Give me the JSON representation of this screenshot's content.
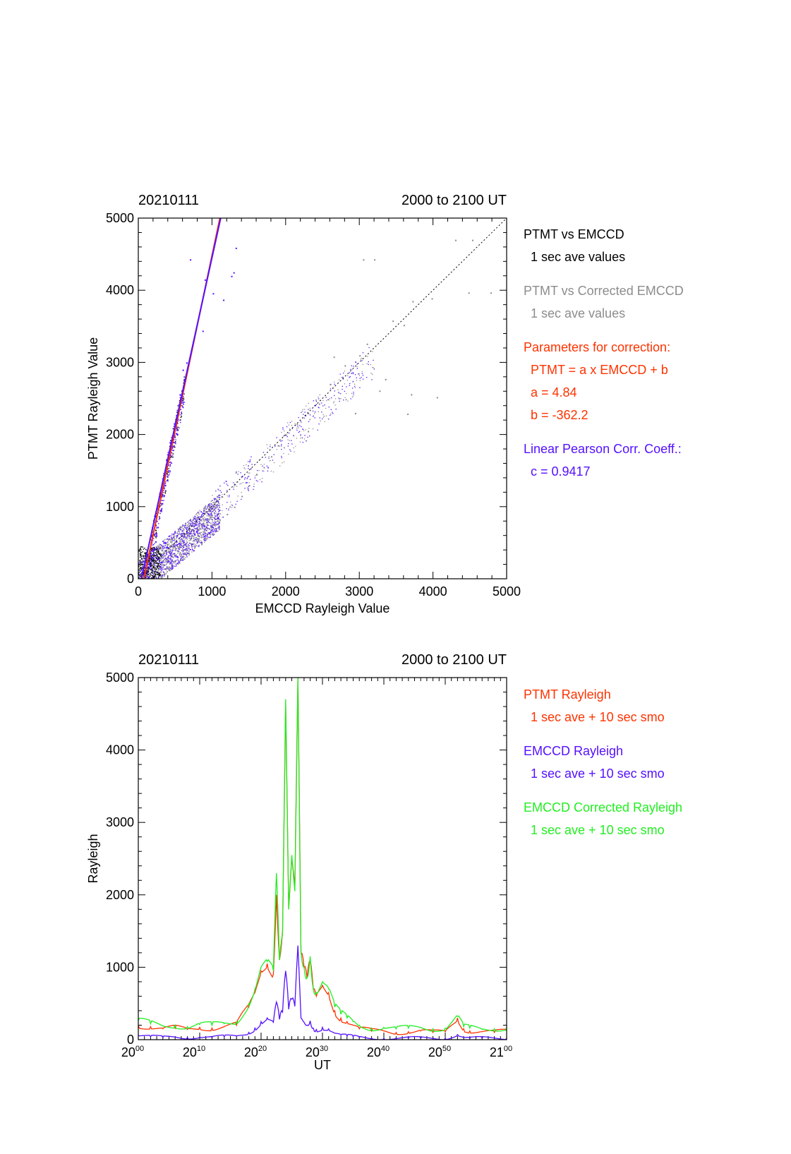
{
  "colors": {
    "black": "#000000",
    "gray": "#8c8c8c",
    "red": "#ff3300",
    "blue": "#5511ff",
    "green": "#22ee22"
  },
  "chart_data": [
    {
      "type": "scatter",
      "title_left": "20210111",
      "title_right": "2000 to 2100 UT",
      "xlabel": "EMCCD Rayleigh Value",
      "ylabel": "PTMT Rayleigh Value",
      "xlim": [
        0,
        5000
      ],
      "ylim": [
        0,
        5000
      ],
      "xticks": [
        "0",
        "1000",
        "2000",
        "3000",
        "4000",
        "5000"
      ],
      "yticks": [
        "0",
        "1000",
        "2000",
        "3000",
        "4000",
        "5000"
      ],
      "legend": [
        {
          "text": "PTMT vs EMCCD",
          "color": "black"
        },
        {
          "text": "1 sec ave values",
          "color": "black"
        },
        {
          "text": "PTMT vs Corrected EMCCD",
          "color": "gray"
        },
        {
          "text": "1 sec ave values",
          "color": "gray"
        },
        {
          "text": "Parameters for correction:",
          "color": "red"
        },
        {
          "text": "PTMT = a x EMCCD + b",
          "color": "red"
        },
        {
          "text": "a = 4.84",
          "color": "red"
        },
        {
          "text": "b = -362.2",
          "color": "red"
        },
        {
          "text": "Linear Pearson Corr. Coeff.:",
          "color": "blue"
        },
        {
          "text": "c = 0.9417",
          "color": "blue"
        }
      ],
      "fit_lines": [
        {
          "name": "correction",
          "color": "red",
          "slope": 4.84,
          "intercept": -362.2
        },
        {
          "name": "regression",
          "color": "blue",
          "slope": 4.65,
          "intercept": -200
        }
      ],
      "reference_line": {
        "style": "dotted",
        "color": "black",
        "points": [
          [
            0,
            0
          ],
          [
            5000,
            5000
          ]
        ]
      },
      "series": [
        {
          "name": "PTMT vs EMCCD",
          "color": "blue",
          "points": [
            [
              700,
              4430
            ],
            [
              900,
              4150
            ],
            [
              870,
              3440
            ],
            [
              1010,
              3960
            ],
            [
              1150,
              3870
            ],
            [
              1260,
              4200
            ],
            [
              1290,
              4250
            ],
            [
              1320,
              4590
            ],
            [
              650,
              3000
            ],
            [
              620,
              2750
            ],
            [
              560,
              2560
            ],
            [
              540,
              2300
            ],
            [
              520,
              2250
            ],
            [
              500,
              2150
            ],
            [
              470,
              1900
            ],
            [
              430,
              1720
            ],
            [
              420,
              1500
            ],
            [
              390,
              1420
            ],
            [
              360,
              1300
            ],
            [
              340,
              1150
            ],
            [
              320,
              1050
            ],
            [
              300,
              950
            ],
            [
              280,
              850
            ],
            [
              260,
              720
            ],
            [
              240,
              600
            ],
            [
              230,
              520
            ],
            [
              210,
              420
            ],
            [
              200,
              350
            ],
            [
              190,
              300
            ],
            [
              170,
              250
            ],
            [
              150,
              200
            ],
            [
              130,
              150
            ],
            [
              110,
              120
            ],
            [
              90,
              80
            ],
            [
              600,
              2900
            ],
            [
              580,
              2450
            ]
          ]
        },
        {
          "name": "PTMT vs Corrected EMCCD",
          "color": "gray",
          "points": [
            [
              3050,
              4430
            ],
            [
              3200,
              4430
            ],
            [
              4300,
              4700
            ],
            [
              4530,
              4700
            ],
            [
              4480,
              3970
            ],
            [
              4780,
              3970
            ],
            [
              3980,
              3890
            ],
            [
              3720,
              3850
            ],
            [
              3450,
              3580
            ],
            [
              3100,
              3260
            ],
            [
              3000,
              3100
            ],
            [
              2800,
              2960
            ],
            [
              2600,
              2700
            ],
            [
              2450,
              2430
            ],
            [
              2300,
              2300
            ],
            [
              2150,
              2150
            ],
            [
              2000,
              2000
            ],
            [
              1900,
              1850
            ],
            [
              1800,
              1700
            ],
            [
              1700,
              1550
            ],
            [
              1600,
              1450
            ],
            [
              1500,
              1300
            ],
            [
              1400,
              1150
            ],
            [
              1300,
              1000
            ],
            [
              1200,
              900
            ],
            [
              1100,
              820
            ],
            [
              1000,
              750
            ],
            [
              900,
              700
            ],
            [
              800,
              620
            ],
            [
              700,
              550
            ],
            [
              600,
              500
            ],
            [
              500,
              430
            ],
            [
              400,
              380
            ],
            [
              300,
              300
            ],
            [
              200,
              200
            ],
            [
              100,
              120
            ],
            [
              3350,
              2770
            ],
            [
              3700,
              2560
            ],
            [
              4050,
              2520
            ],
            [
              3650,
              2290
            ],
            [
              2650,
              3080
            ],
            [
              3270,
              2610
            ],
            [
              3600,
              3520
            ],
            [
              2940,
              2300
            ],
            [
              2300,
              2050
            ]
          ]
        }
      ]
    },
    {
      "type": "line",
      "title_left": "20210111",
      "title_right": "2000 to 2100 UT",
      "xlabel": "UT",
      "ylabel": "Rayleigh",
      "ylim": [
        0,
        5000
      ],
      "xlim_minutes": [
        0,
        60
      ],
      "yticks": [
        "0",
        "1000",
        "2000",
        "3000",
        "4000",
        "5000"
      ],
      "xticks": [
        {
          "base": "20",
          "sup": "00"
        },
        {
          "base": "20",
          "sup": "10"
        },
        {
          "base": "20",
          "sup": "20"
        },
        {
          "base": "20",
          "sup": "30"
        },
        {
          "base": "20",
          "sup": "40"
        },
        {
          "base": "20",
          "sup": "50"
        },
        {
          "base": "21",
          "sup": "00"
        }
      ],
      "legend": [
        {
          "text": "PTMT Rayleigh",
          "color": "red"
        },
        {
          "text": "1 sec ave + 10 sec smo",
          "color": "red"
        },
        {
          "text": "EMCCD Rayleigh",
          "color": "blue"
        },
        {
          "text": "1 sec ave + 10 sec smo",
          "color": "blue"
        },
        {
          "text": "EMCCD Corrected Rayleigh",
          "color": "green"
        },
        {
          "text": "1 sec ave + 10 sec smo",
          "color": "green"
        }
      ],
      "series": [
        {
          "name": "PTMT Rayleigh",
          "color": "red",
          "x": [
            0,
            2,
            4,
            6,
            8,
            10,
            12,
            14,
            16,
            18,
            19,
            20,
            21,
            22,
            22.5,
            23,
            23.5,
            24,
            24.5,
            25,
            25.5,
            26,
            26.5,
            27,
            27.5,
            28,
            28.5,
            29,
            30,
            31,
            32,
            33,
            34,
            35,
            36,
            38,
            40,
            42,
            44,
            46,
            48,
            50,
            52,
            53,
            54,
            56,
            58,
            60
          ],
          "y": [
            200,
            180,
            150,
            160,
            140,
            170,
            160,
            180,
            200,
            450,
            650,
            950,
            1050,
            900,
            2000,
            1100,
            1500,
            4650,
            1800,
            2500,
            2100,
            5000,
            1200,
            1000,
            850,
            1100,
            700,
            600,
            750,
            650,
            400,
            300,
            250,
            200,
            150,
            120,
            120,
            100,
            110,
            120,
            100,
            110,
            300,
            150,
            120,
            110,
            100,
            120
          ]
        },
        {
          "name": "EMCCD Corrected Rayleigh",
          "color": "green",
          "x": [
            0,
            2,
            4,
            6,
            8,
            10,
            12,
            14,
            16,
            18,
            19,
            20,
            21,
            22,
            22.5,
            23,
            23.5,
            24,
            24.5,
            25,
            25.5,
            26,
            26.5,
            27,
            27.5,
            28,
            28.5,
            29,
            30,
            31,
            32,
            33,
            34,
            35,
            36,
            38,
            40,
            42,
            44,
            46,
            48,
            50,
            52,
            53,
            54,
            56,
            58,
            60
          ],
          "y": [
            260,
            220,
            190,
            200,
            180,
            210,
            200,
            220,
            250,
            500,
            700,
            1000,
            1080,
            950,
            2300,
            1100,
            1450,
            4700,
            1800,
            2550,
            2050,
            5000,
            1200,
            1000,
            850,
            1150,
            700,
            650,
            800,
            700,
            450,
            350,
            300,
            250,
            200,
            160,
            170,
            150,
            160,
            170,
            150,
            160,
            320,
            180,
            160,
            140,
            150,
            170
          ]
        },
        {
          "name": "EMCCD Rayleigh",
          "color": "blue",
          "x": [
            0,
            2,
            4,
            6,
            8,
            10,
            12,
            14,
            16,
            18,
            19,
            20,
            21,
            22,
            22.5,
            23,
            23.5,
            24,
            24.5,
            25,
            25.5,
            26,
            26.5,
            27,
            27.5,
            28,
            28.5,
            29,
            30,
            31,
            32,
            33,
            34,
            35,
            36,
            38,
            40,
            42,
            44,
            46,
            48,
            50,
            52,
            53,
            54,
            56,
            58,
            60
          ],
          "y": [
            60,
            40,
            30,
            40,
            30,
            40,
            30,
            40,
            50,
            100,
            160,
            250,
            300,
            240,
            520,
            280,
            380,
            950,
            420,
            560,
            460,
            1300,
            300,
            240,
            200,
            260,
            160,
            140,
            170,
            150,
            90,
            60,
            50,
            40,
            30,
            20,
            20,
            20,
            20,
            20,
            20,
            20,
            70,
            30,
            20,
            20,
            20,
            20
          ]
        }
      ]
    }
  ]
}
